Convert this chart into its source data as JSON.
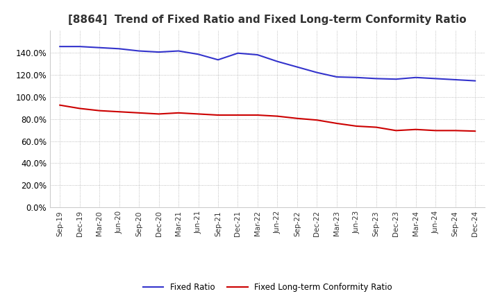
{
  "title": "[8864]  Trend of Fixed Ratio and Fixed Long-term Conformity Ratio",
  "x_labels": [
    "Sep-19",
    "Dec-19",
    "Mar-20",
    "Jun-20",
    "Sep-20",
    "Dec-20",
    "Mar-21",
    "Jun-21",
    "Sep-21",
    "Dec-21",
    "Mar-22",
    "Jun-22",
    "Sep-22",
    "Dec-22",
    "Mar-23",
    "Jun-23",
    "Sep-23",
    "Dec-23",
    "Mar-24",
    "Jun-24",
    "Sep-24",
    "Dec-24"
  ],
  "fixed_ratio": [
    1.455,
    1.455,
    1.445,
    1.435,
    1.415,
    1.405,
    1.415,
    1.385,
    1.335,
    1.395,
    1.38,
    1.32,
    1.27,
    1.22,
    1.18,
    1.175,
    1.165,
    1.16,
    1.175,
    1.165,
    1.155,
    1.145
  ],
  "fixed_lt_ratio": [
    0.925,
    0.895,
    0.875,
    0.865,
    0.855,
    0.845,
    0.855,
    0.845,
    0.835,
    0.835,
    0.835,
    0.825,
    0.805,
    0.79,
    0.76,
    0.735,
    0.725,
    0.695,
    0.705,
    0.695,
    0.695,
    0.69
  ],
  "fixed_ratio_color": "#3333cc",
  "fixed_lt_ratio_color": "#cc0000",
  "background_color": "#ffffff",
  "grid_color": "#aaaaaa",
  "ylim": [
    0.0,
    1.6
  ],
  "yticks": [
    0.0,
    0.2,
    0.4,
    0.6,
    0.8,
    1.0,
    1.2,
    1.4
  ],
  "title_fontsize": 11,
  "legend_labels": [
    "Fixed Ratio",
    "Fixed Long-term Conformity Ratio"
  ]
}
